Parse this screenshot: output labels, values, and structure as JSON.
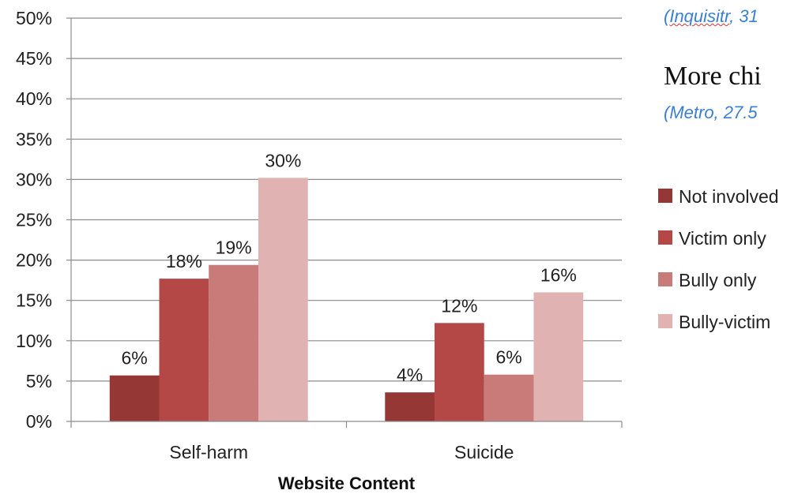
{
  "side_text": {
    "cite1_prefix": "(",
    "cite1_source": "Inquisitr",
    "cite1_rest": ", 31",
    "headline": "More chi",
    "cite2": "(Metro, 27.5"
  },
  "colors": {
    "Not involved": "#953735",
    "Victim only": "#b34846",
    "Bully only": "#c97b79",
    "Bully-victim": "#e0b3b2"
  },
  "chart_data": {
    "type": "bar",
    "categories": [
      "Self-harm",
      "Suicide"
    ],
    "series": [
      {
        "name": "Not involved",
        "values": [
          5.7,
          3.6
        ],
        "labels": [
          "6%",
          "4%"
        ]
      },
      {
        "name": "Victim only",
        "values": [
          17.7,
          12.2
        ],
        "labels": [
          "18%",
          "12%"
        ]
      },
      {
        "name": "Bully only",
        "values": [
          19.4,
          5.8
        ],
        "labels": [
          "19%",
          "6%"
        ]
      },
      {
        "name": "Bully-victim",
        "values": [
          30.2,
          16.0
        ],
        "labels": [
          "30%",
          "16%"
        ]
      }
    ],
    "xlabel": "Website Content",
    "ylabel": "",
    "ylim": [
      0,
      50
    ],
    "yticks": [
      "0%",
      "5%",
      "10%",
      "15%",
      "20%",
      "25%",
      "30%",
      "35%",
      "40%",
      "45%",
      "50%"
    ],
    "grid": true,
    "legend": "right"
  }
}
